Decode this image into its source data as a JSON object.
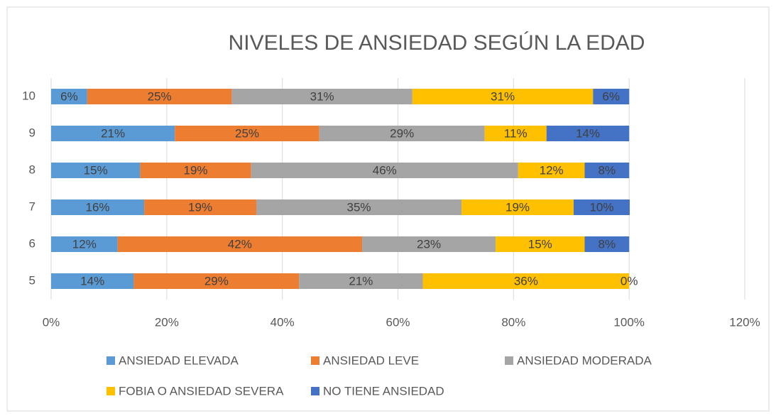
{
  "chart_data": {
    "type": "stacked_barh",
    "title": "NIVELES DE ANSIEDAD SEGÚN LA EDAD",
    "categories": [
      "5",
      "6",
      "7",
      "8",
      "9",
      "10"
    ],
    "series": [
      {
        "name": "ANSIEDAD ELEVADA",
        "color": "#5b9bd5",
        "values": [
          14.3,
          11.5,
          16.1,
          15.4,
          21.4,
          6.25
        ],
        "value_labels": [
          "14%",
          "12%",
          "16%",
          "15%",
          "21%",
          "6%"
        ]
      },
      {
        "name": "ANSIEDAD LEVE",
        "color": "#ed7d31",
        "values": [
          28.6,
          42.3,
          19.4,
          19.2,
          25,
          25
        ],
        "value_labels": [
          "29%",
          "42%",
          "19%",
          "19%",
          "25%",
          "25%"
        ]
      },
      {
        "name": "ANSIEDAD MODERADA",
        "color": "#a5a5a5",
        "values": [
          21.4,
          23.1,
          35.5,
          46.2,
          28.6,
          31.25
        ],
        "value_labels": [
          "21%",
          "23%",
          "35%",
          "46%",
          "29%",
          "31%"
        ]
      },
      {
        "name": "FOBIA O ANSIEDAD SEVERA",
        "color": "#ffc000",
        "values": [
          35.7,
          15.4,
          19.4,
          11.5,
          10.7,
          31.25
        ],
        "value_labels": [
          "36%",
          "15%",
          "19%",
          "12%",
          "11%",
          "31%"
        ]
      },
      {
        "name": "NO TIENE ANSIEDAD",
        "color": "#4472c4",
        "values": [
          0,
          7.7,
          9.7,
          7.7,
          14.3,
          6.25
        ],
        "value_labels": [
          "0%",
          "8%",
          "10%",
          "8%",
          "14%",
          "6%"
        ]
      }
    ],
    "xlim": [
      0,
      120
    ],
    "xticks": [
      {
        "value": 0,
        "label": "0%"
      },
      {
        "value": 20,
        "label": "20%"
      },
      {
        "value": 40,
        "label": "40%"
      },
      {
        "value": 60,
        "label": "60%"
      },
      {
        "value": 80,
        "label": "80%"
      },
      {
        "value": 100,
        "label": "100%"
      },
      {
        "value": 120,
        "label": "120%"
      }
    ],
    "grid": true,
    "legend": "bottom"
  }
}
